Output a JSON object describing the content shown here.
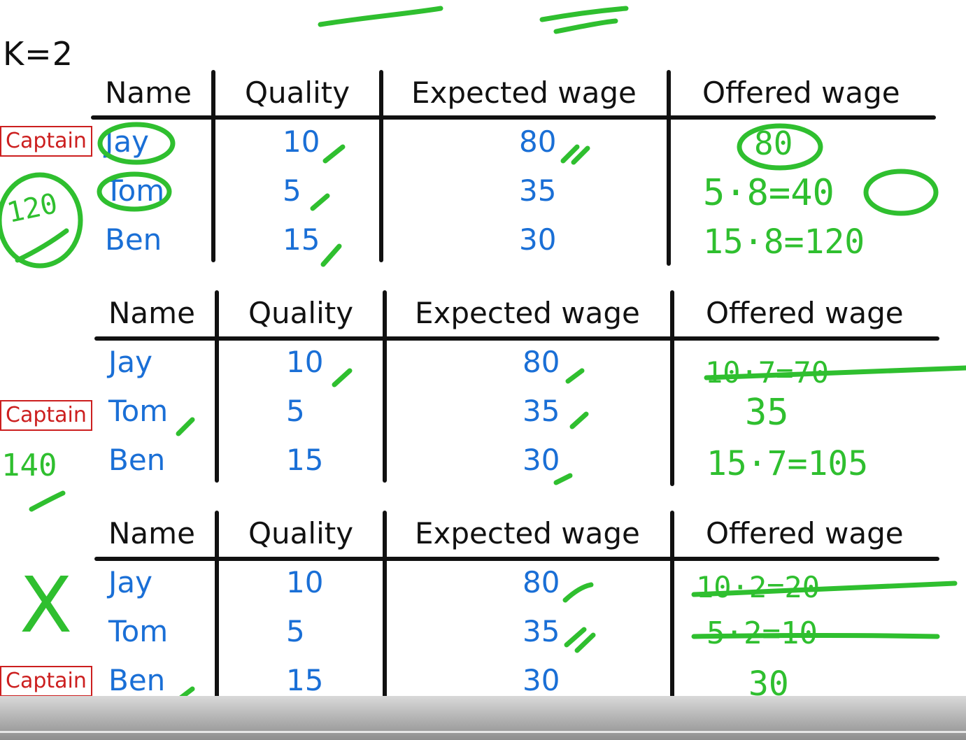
{
  "k_label": "K=2",
  "captain_label": "Captain",
  "headers": [
    "Name",
    "Quality",
    "Expected wage",
    "Offered wage"
  ],
  "tables": [
    {
      "captain_row": 0,
      "rows": [
        {
          "name": "Jay",
          "quality": "10",
          "expected": "80"
        },
        {
          "name": "Tom",
          "quality": "5",
          "expected": "35"
        },
        {
          "name": "Ben",
          "quality": "15",
          "expected": "30"
        }
      ],
      "offered": [
        "80",
        "5·8=40",
        "15·8=120"
      ],
      "side_note": "120"
    },
    {
      "captain_row": 1,
      "rows": [
        {
          "name": "Jay",
          "quality": "10",
          "expected": "80"
        },
        {
          "name": "Tom",
          "quality": "5",
          "expected": "35"
        },
        {
          "name": "Ben",
          "quality": "15",
          "expected": "30"
        }
      ],
      "offered": [
        "10·7=70",
        "35",
        "15·7=105"
      ],
      "side_note": "140"
    },
    {
      "captain_row": 2,
      "rows": [
        {
          "name": "Jay",
          "quality": "10",
          "expected": "80"
        },
        {
          "name": "Tom",
          "quality": "5",
          "expected": "35"
        },
        {
          "name": "Ben",
          "quality": "15",
          "expected": "30"
        }
      ],
      "offered": [
        "10·2=20",
        "5·2=10",
        "30"
      ],
      "side_note": "X"
    }
  ],
  "colors": {
    "header_text": "#111111",
    "value_text": "#1a6fd6",
    "captain": "#cc1f1f",
    "annotation": "#2fbf2f"
  }
}
